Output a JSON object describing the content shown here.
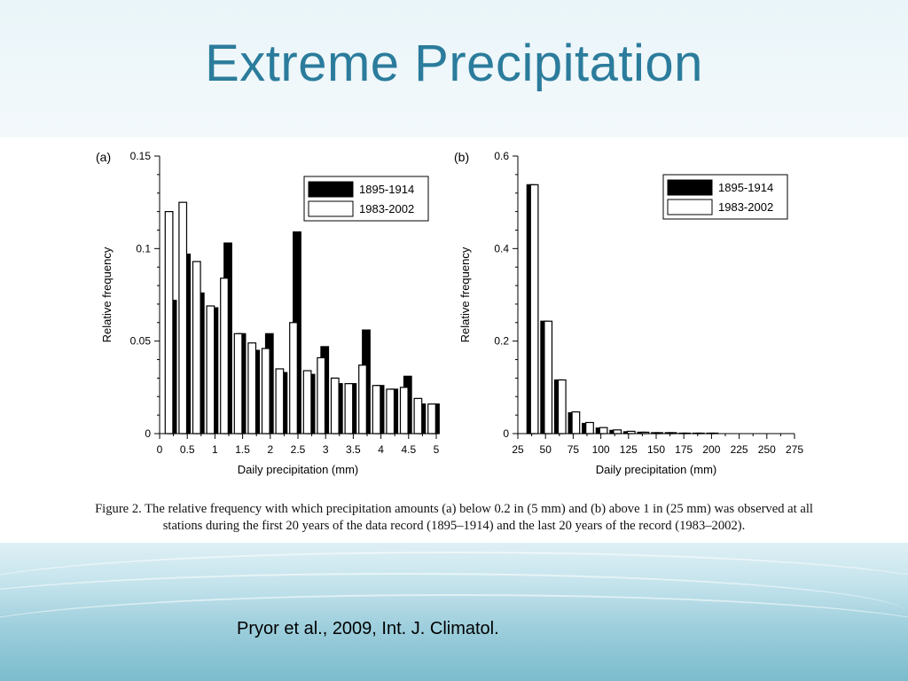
{
  "slide": {
    "title": "Extreme Precipitation",
    "caption_line1": "Figure 2. The relative frequency with which precipitation amounts (a) below 0.2 in (5 mm) and (b) above 1 in (25 mm) was observed at all",
    "caption_line2": "stations during the first 20 years of the data record (1895–1914) and the last 20 years of the record (1983–2002).",
    "citation": "Pryor et al., 2009, Int. J. Climatol."
  },
  "colors": {
    "title": "#2b7c9c",
    "series_early": "#000000",
    "series_late": "#ffffff"
  },
  "chart_data": [
    {
      "type": "bar",
      "panel_label": "(a)",
      "xlabel": "Daily precipitation (mm)",
      "ylabel": "Relative frequency",
      "xlim": [
        0,
        5
      ],
      "ylim": [
        0,
        0.15
      ],
      "xticks": [
        "0",
        "0.5",
        "1",
        "1.5",
        "2",
        "2.5",
        "3",
        "3.5",
        "4",
        "4.5",
        "5"
      ],
      "yticks": [
        "0",
        "0.05",
        "0.1",
        "0.15"
      ],
      "legend_position": "top-right",
      "x": [
        0.25,
        0.5,
        0.75,
        1.0,
        1.25,
        1.5,
        1.75,
        2.0,
        2.25,
        2.5,
        2.75,
        3.0,
        3.25,
        3.5,
        3.75,
        4.0,
        4.25,
        4.5,
        4.75,
        5.0
      ],
      "series": [
        {
          "name": "1895-1914",
          "values": [
            0.072,
            0.097,
            0.076,
            0.068,
            0.103,
            0.054,
            0.045,
            0.054,
            0.033,
            0.109,
            0.032,
            0.047,
            0.027,
            0.027,
            0.056,
            0.026,
            0.024,
            0.031,
            0.016,
            0.016
          ]
        },
        {
          "name": "1983-2002",
          "values": [
            0.12,
            0.125,
            0.093,
            0.069,
            0.084,
            0.054,
            0.049,
            0.046,
            0.035,
            0.06,
            0.034,
            0.041,
            0.03,
            0.027,
            0.037,
            0.026,
            0.024,
            0.025,
            0.019,
            0.016
          ]
        }
      ]
    },
    {
      "type": "bar",
      "panel_label": "(b)",
      "xlabel": "Daily precipitation (mm)",
      "ylabel": "Relative frequency",
      "xlim": [
        25,
        275
      ],
      "ylim": [
        0,
        0.6
      ],
      "xticks": [
        "25",
        "50",
        "75",
        "100",
        "125",
        "150",
        "175",
        "200",
        "225",
        "250",
        "275"
      ],
      "yticks": [
        "0",
        "0.2",
        "0.4",
        "0.6"
      ],
      "legend_position": "top-right",
      "x": [
        37.5,
        50,
        62.5,
        75,
        87.5,
        100,
        112.5,
        125,
        137.5,
        150,
        162.5,
        175,
        187.5,
        200
      ],
      "series": [
        {
          "name": "1895-1914",
          "values": [
            0.538,
            0.243,
            0.116,
            0.045,
            0.022,
            0.012,
            0.007,
            0.004,
            0.003,
            0.002,
            0.002,
            0.001,
            0.001,
            0.001
          ]
        },
        {
          "name": "1983-2002",
          "values": [
            0.538,
            0.243,
            0.116,
            0.047,
            0.024,
            0.013,
            0.008,
            0.005,
            0.003,
            0.002,
            0.002,
            0.001,
            0.001,
            0.001
          ]
        }
      ]
    }
  ]
}
